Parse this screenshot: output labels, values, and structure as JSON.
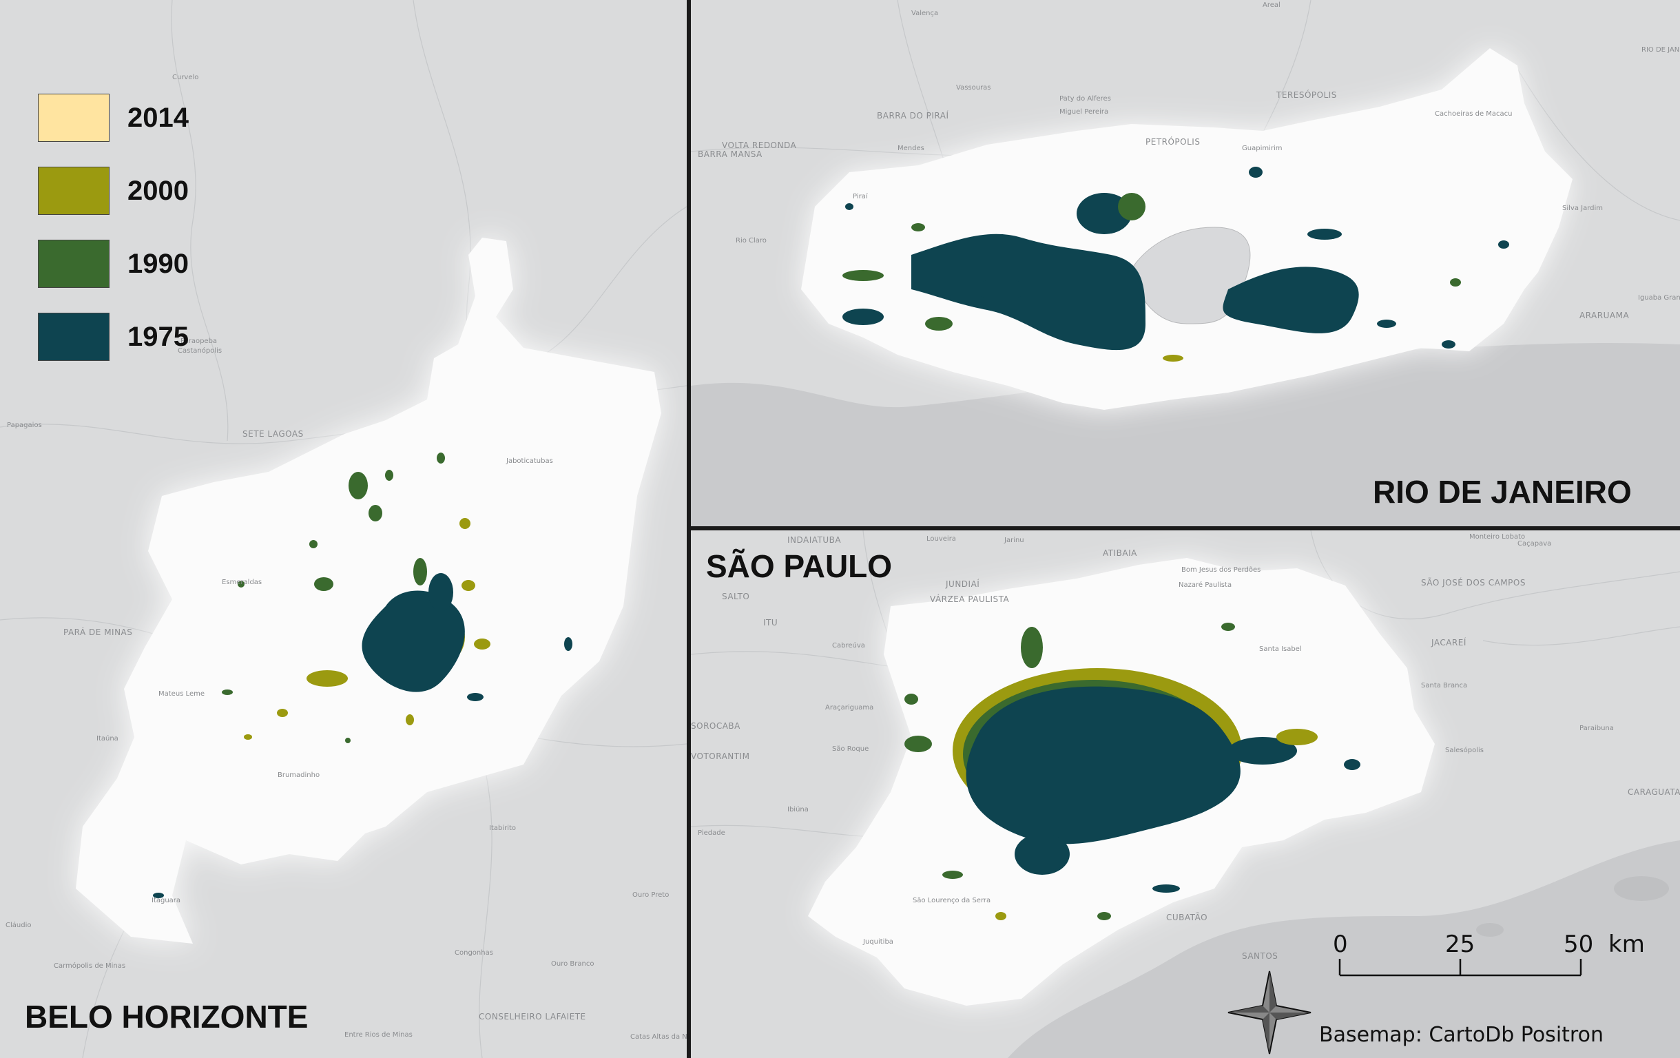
{
  "legend": {
    "items": [
      {
        "year": "2014",
        "color": "#ffe4a0"
      },
      {
        "year": "2000",
        "color": "#9b9a10"
      },
      {
        "year": "1990",
        "color": "#3a6a2e"
      },
      {
        "year": "1975",
        "color": "#0e4450"
      }
    ]
  },
  "panels": {
    "bh": {
      "title": "BELO HORIZONTE"
    },
    "rj": {
      "title": "RIO DE JANEIRO"
    },
    "sp": {
      "title": "SÃO PAULO"
    }
  },
  "towns": {
    "bh": [
      "Curvelo",
      "Paraopeba",
      "Castanópolis",
      "Papagaios",
      "SETE LAGOAS",
      "Jaboticatubas",
      "Esmeraldas",
      "PARÁ DE MINAS",
      "Itaúna",
      "Mateus Leme",
      "Brumadinho",
      "Itabirito",
      "Itaguara",
      "Congonhas",
      "CONSELHEIRO LAFAIETE",
      "Carmópolis de Minas",
      "Entre Rios de Minas",
      "Catas Altas da Noruega",
      "Ouro Branco",
      "Ouro Preto",
      "Cláudio"
    ],
    "rj": [
      "Valença",
      "Areal",
      "RIO DE JANEIRO",
      "Vassouras",
      "Paty do Alferes",
      "TERESÓPOLIS",
      "BARRA DO PIRAÍ",
      "Miguel Pereira",
      "VOLTA REDONDA",
      "BARRA MANSA",
      "Mendes",
      "PETRÓPOLIS",
      "Guapimirim",
      "Cachoeiras de Macacu",
      "Piraí",
      "Rio Claro",
      "Silva Jardim",
      "ARARUAMA",
      "Iguaba Grande"
    ],
    "sp": [
      "INDAIATUBA",
      "Louveira",
      "Jarinu",
      "ATIBAIA",
      "Bom Jesus dos Perdões",
      "Nazaré Paulista",
      "SÃO JOSÉ DOS CAMPOS",
      "Caçapava",
      "Monteiro Lobato",
      "SALTO",
      "JUNDIAÍ",
      "VÁRZEA PAULISTA",
      "ITU",
      "Cabreúva",
      "JACAREÍ",
      "Santa Branca",
      "Araçariguama",
      "SOROCABA",
      "VOTORANTIM",
      "São Roque",
      "Piedade",
      "Ibiúna",
      "Salesópolis",
      "Paraibuna",
      "CARAGUATATUBA",
      "CUBATÃO",
      "SANTOS",
      "Juquitiba",
      "São Lourenço da Serra",
      "Santa Isabel"
    ]
  },
  "scalebar": {
    "ticks": [
      "0",
      "25",
      "50"
    ],
    "unit": "km"
  },
  "credit": "Basemap: CartoDb Positron"
}
